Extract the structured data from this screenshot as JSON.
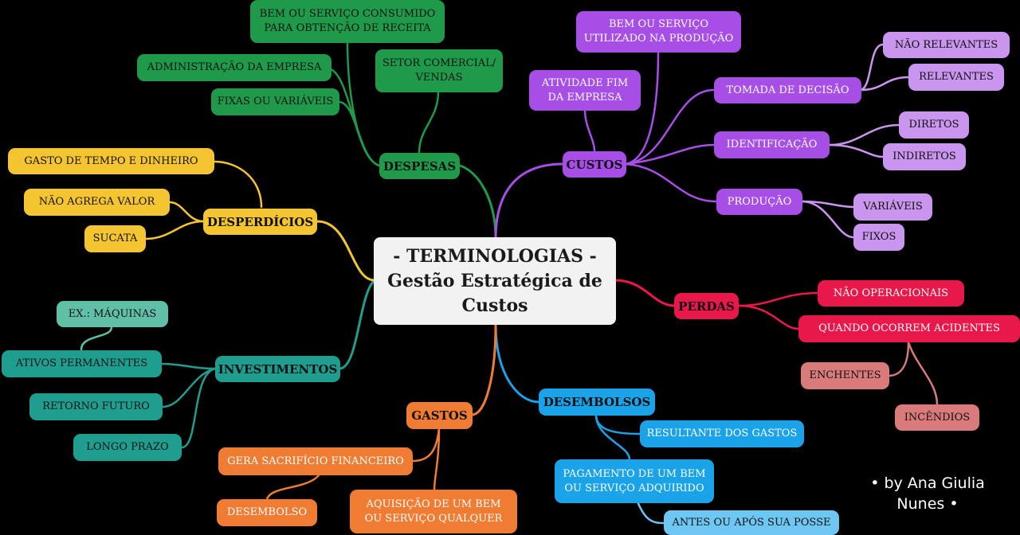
{
  "center": {
    "line1": "- TERMINOLOGIAS -",
    "line2": "Gestão Estratégica de",
    "line3": "Custos"
  },
  "colors": {
    "despesas": "#1f9a4a",
    "custos": "#a64ee6",
    "custos_sub": "#c995ee",
    "perdas": "#e8194a",
    "perdas_sub": "#d97b7b",
    "desembolsos": "#1aa3e8",
    "desembolsos_sub": "#6ec7f2",
    "gastos": "#f07c33",
    "investimentos": "#1f9e8f",
    "investimentos_sub": "#5fc0a7",
    "desperdicios": "#f4c531",
    "background": "#000000"
  },
  "branches": {
    "despesas": {
      "label": "DESPESAS",
      "children": [
        "BEM OU SERVIÇO CONSUMIDO PARA OBTENÇÃO DE RECEITA",
        "ADMINISTRAÇÃO DA EMPRESA",
        "FIXAS OU VARIÁVEIS",
        "SETOR COMERCIAL/ VENDAS"
      ]
    },
    "custos": {
      "label": "CUSTOS",
      "children": [
        "BEM OU SERVIÇO UTILIZADO NA PRODUÇÃO",
        "ATIVIDADE FIM DA EMPRESA",
        "TOMADA DE DECISÃO",
        "IDENTIFICAÇÃO",
        "PRODUÇÃO"
      ],
      "grandchildren": {
        "tomada": [
          "NÃO RELEVANTES",
          "RELEVANTES"
        ],
        "identificacao": [
          "DIRETOS",
          "INDIRETOS"
        ],
        "producao": [
          "VARIÁVEIS",
          "FIXOS"
        ]
      }
    },
    "perdas": {
      "label": "PERDAS",
      "children": [
        "NÃO OPERACIONAIS",
        "QUANDO OCORREM ACIDENTES"
      ],
      "grandchildren": [
        "ENCHENTES",
        "INCÊNDIOS"
      ]
    },
    "desembolsos": {
      "label": "DESEMBOLSOS",
      "children": [
        "RESULTANTE DOS GASTOS",
        "PAGAMENTO DE UM BEM OU SERVIÇO ADQUIRIDO"
      ],
      "grandchildren": [
        "ANTES OU APÓS SUA POSSE"
      ]
    },
    "gastos": {
      "label": "GASTOS",
      "children": [
        "GERA SACRIFÍCIO FINANCEIRO",
        "AQUISIÇÃO DE UM BEM OU SERVIÇO QUALQUER"
      ],
      "grandchildren": [
        "DESEMBOLSO"
      ]
    },
    "investimentos": {
      "label": "INVESTIMENTOS",
      "children": [
        "ATIVOS PERMANENTES",
        "RETORNO FUTURO",
        "LONGO PRAZO"
      ],
      "grandchildren": [
        "EX.: MÁQUINAS"
      ]
    },
    "desperdicios": {
      "label": "DESPERDÍCIOS",
      "children": [
        "GASTO DE TEMPO E DINHEIRO",
        "NÃO AGREGA VALOR",
        "SUCATA"
      ]
    }
  },
  "credit": {
    "line1": "• by Ana Giulia",
    "line2": "Nunes •"
  }
}
